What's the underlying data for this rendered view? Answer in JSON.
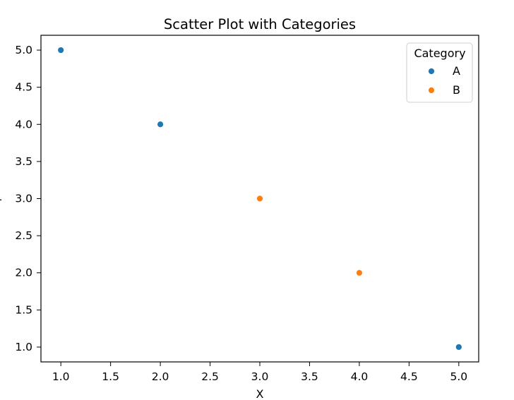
{
  "chart_data": {
    "type": "scatter",
    "title": "Scatter Plot with Categories",
    "xlabel": "X",
    "ylabel": "-",
    "xlim": [
      0.8,
      5.2
    ],
    "ylim": [
      0.8,
      5.2
    ],
    "x_ticks": [
      1.0,
      1.5,
      2.0,
      2.5,
      3.0,
      3.5,
      4.0,
      4.5,
      5.0
    ],
    "y_ticks": [
      1.0,
      1.5,
      2.0,
      2.5,
      3.0,
      3.5,
      4.0,
      4.5,
      5.0
    ],
    "x_tick_labels": [
      "1.0",
      "1.5",
      "2.0",
      "2.5",
      "3.0",
      "3.5",
      "4.0",
      "4.5",
      "5.0"
    ],
    "y_tick_labels": [
      "1.0",
      "1.5",
      "2.0",
      "2.5",
      "3.0",
      "3.5",
      "4.0",
      "4.5",
      "5.0"
    ],
    "grid": false,
    "legend": {
      "title": "Category",
      "placement": "top-right"
    },
    "series": [
      {
        "name": "A",
        "color": "#1f77b4",
        "points": [
          {
            "x": 1,
            "y": 5
          },
          {
            "x": 2,
            "y": 4
          },
          {
            "x": 5,
            "y": 1
          }
        ]
      },
      {
        "name": "B",
        "color": "#ff7f0e",
        "points": [
          {
            "x": 3,
            "y": 3
          },
          {
            "x": 4,
            "y": 2
          }
        ]
      }
    ]
  }
}
